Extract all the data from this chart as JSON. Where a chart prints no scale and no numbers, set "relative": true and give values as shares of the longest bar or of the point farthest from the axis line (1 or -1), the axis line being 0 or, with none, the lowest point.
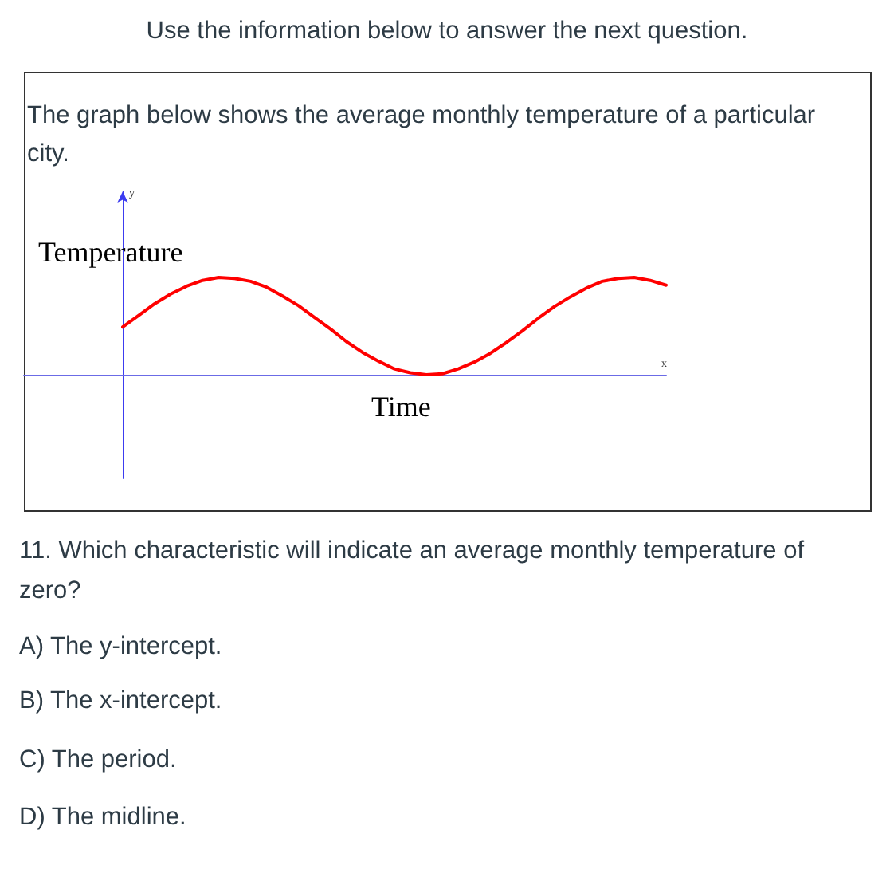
{
  "chart_data": {
    "type": "line",
    "relative": true,
    "title": "Use the information below to answer the next question.",
    "subtitle": "The graph below shows the average monthly temperature of a particular city.",
    "xlabel": "Time",
    "ylabel": "Temperature",
    "categories": [
      null,
      null,
      null,
      null,
      null,
      null,
      null,
      null,
      null,
      null,
      null,
      null,
      null,
      null,
      null,
      null,
      null,
      null,
      null,
      null,
      null,
      null,
      null,
      null,
      null,
      null,
      null,
      null,
      null,
      null,
      null,
      null,
      null,
      null,
      null
    ],
    "series": [
      {
        "color": "#ff0000",
        "values": [
          0.49,
          0.61,
          0.73,
          0.83,
          0.91,
          0.97,
          1.0,
          0.99,
          0.96,
          0.9,
          0.81,
          0.71,
          0.59,
          0.47,
          0.34,
          0.23,
          0.14,
          0.06,
          0.02,
          0.0,
          0.01,
          0.06,
          0.13,
          0.22,
          0.33,
          0.45,
          0.58,
          0.7,
          0.8,
          0.89,
          0.96,
          0.99,
          1.0,
          0.97,
          0.92
        ]
      }
    ],
    "marker": "none",
    "line_style": "solid",
    "annotations": [
      "11. Which characteristic will indicate an average monthly temperature of zero?",
      "A) The y-intercept.",
      "B) The x-intercept.",
      "C) The period.",
      "D) The midline.",
      "y",
      "x"
    ]
  }
}
